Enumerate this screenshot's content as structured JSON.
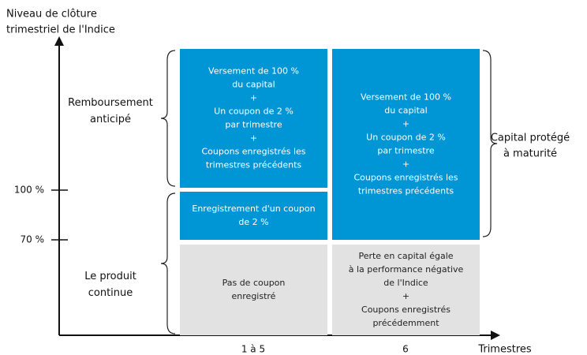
{
  "y_axis_label": [
    "Niveau de clôture",
    "trimestriel de l'Indice"
  ],
  "x_axis_label": "Trimestres",
  "y_ticks": [
    "100 %",
    "70 %"
  ],
  "columns": [
    "1 à 5",
    "6"
  ],
  "row_labels": [
    {
      "lines": [
        "Remboursement",
        "anticipé"
      ]
    },
    {
      "lines": [
        "Le produit",
        "continue"
      ]
    }
  ],
  "right_label": [
    "Capital protégé",
    "à maturité"
  ],
  "boxes": [
    {
      "lines": [
        "Versement de 100 %",
        "du capital",
        "+",
        "Un coupon de 2 %",
        "par trimestre",
        "+",
        "Coupons enregistrés les",
        "trimestres précédents"
      ]
    },
    {
      "lines": [
        "Enregistrement d'un coupon",
        "de 2 %"
      ]
    },
    {
      "lines": [
        "Pas de coupon",
        "enregistré"
      ]
    },
    {
      "lines": [
        "Versement de 100 %",
        "du capital",
        "+",
        "Un coupon de 2 %",
        "par trimestre",
        "+",
        "Coupons enregistrés les",
        "trimestres précédents"
      ]
    },
    {
      "lines": [
        "Perte en capital égale",
        "à la performance négative",
        "de l'Indice",
        "+",
        "Coupons enregistrés",
        "précédemment"
      ]
    }
  ]
}
